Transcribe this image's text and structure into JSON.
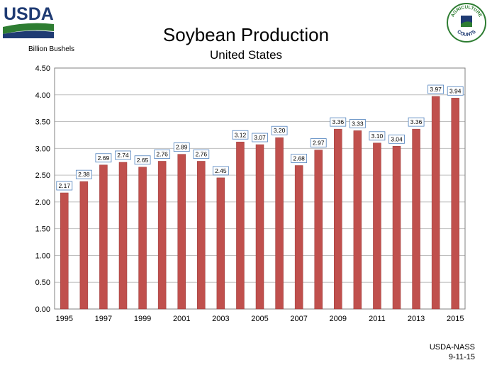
{
  "header": {
    "logo_text": "USDA",
    "badge_text_top": "AGRICULTURE",
    "badge_text_bottom": "COUNTS"
  },
  "footer": {
    "source": "USDA-NASS",
    "date": "9-11-15"
  },
  "colors": {
    "bar": "#c0504d",
    "bar_edge": "#9a3a38",
    "grid": "#bfbfbf",
    "label_border": "#4f81bd",
    "logo_blue": "#1f3b73",
    "logo_green": "#2e7d32"
  },
  "chart_data": {
    "type": "bar",
    "title": "Soybean Production",
    "subtitle": "United States",
    "ylabel": "Billion Bushels",
    "xlabel": "",
    "ylim": [
      0,
      4.5
    ],
    "yticks": [
      "0.00",
      "0.50",
      "1.00",
      "1.50",
      "2.00",
      "2.50",
      "3.00",
      "3.50",
      "4.00",
      "4.50"
    ],
    "categories": [
      "1995",
      "1996",
      "1997",
      "1998",
      "1999",
      "2000",
      "2001",
      "2002",
      "2003",
      "2004",
      "2005",
      "2006",
      "2007",
      "2008",
      "2009",
      "2010",
      "2011",
      "2012",
      "2013",
      "2014",
      "2015"
    ],
    "x_tick_labels": [
      "1995",
      "",
      "1997",
      "",
      "1999",
      "",
      "2001",
      "",
      "2003",
      "",
      "2005",
      "",
      "2007",
      "",
      "2009",
      "",
      "2011",
      "",
      "2013",
      "",
      "2015"
    ],
    "values": [
      2.17,
      2.38,
      2.69,
      2.74,
      2.65,
      2.76,
      2.89,
      2.76,
      2.45,
      3.12,
      3.07,
      3.2,
      2.68,
      2.97,
      3.36,
      3.33,
      3.1,
      3.04,
      3.36,
      3.97,
      3.94
    ],
    "value_labels": [
      "2.17",
      "2.38",
      "2.69",
      "2.74",
      "2.65",
      "2.76",
      "2.89",
      "2.76",
      "2.45",
      "3.12",
      "3.07",
      "3.20",
      "2.68",
      "2.97",
      "3.36",
      "3.33",
      "3.10",
      "3.04",
      "3.36",
      "3.97",
      "3.94"
    ],
    "grid": true,
    "legend": "none"
  }
}
